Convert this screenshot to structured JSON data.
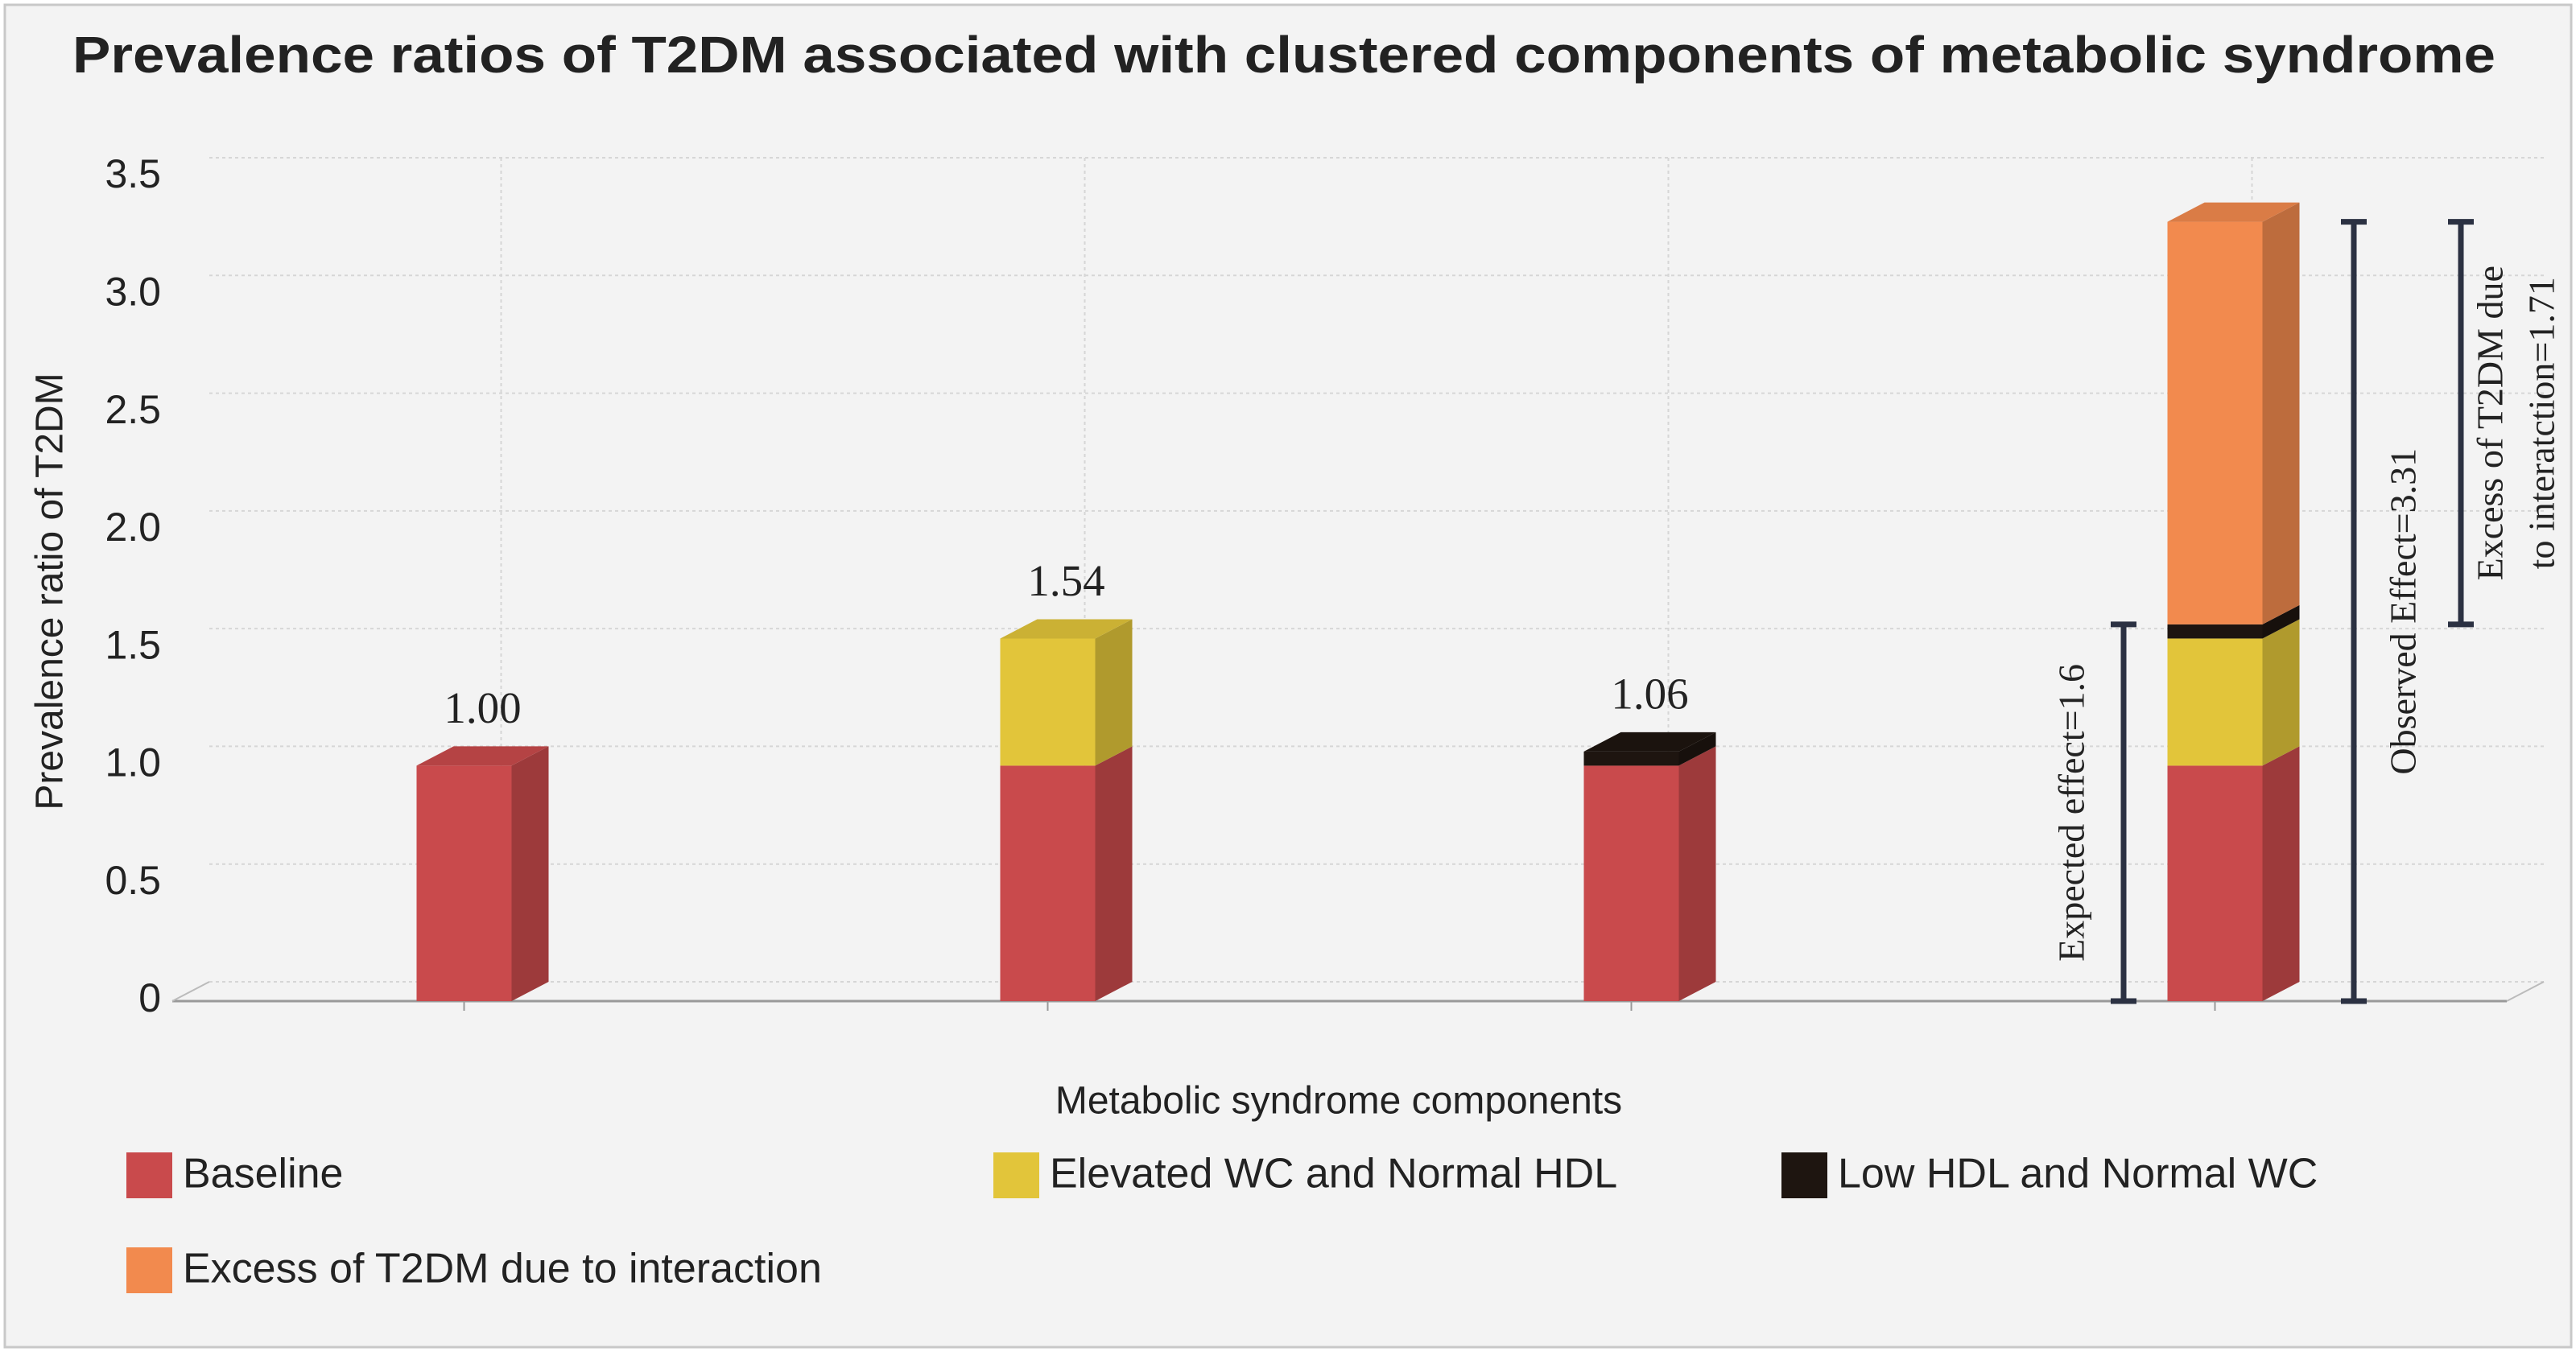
{
  "chart_data": {
    "type": "bar3d-stacked",
    "title": "Prevalence ratios of T2DM associated with clustered components of metabolic syndrome",
    "x_label": "Metabolic syndrome components",
    "y_label": "Prevalence ratio of T2DM",
    "categories": [
      null,
      null,
      null,
      null
    ],
    "series": [
      {
        "name": "Baseline",
        "color": "#c94a4c",
        "values": [
          1,
          1,
          1,
          1
        ]
      },
      {
        "name": "Elevated WC and Normal HDL",
        "color": "#e2c53a",
        "values": [
          0,
          0.54,
          0,
          0.54
        ]
      },
      {
        "name": "Low HDL and Normal WC",
        "color": "#1e1510",
        "values": [
          0,
          0,
          0.06,
          0.06
        ]
      },
      {
        "name": "Excess of T2DM due to interaction",
        "color": "#f28a4e",
        "values": [
          0,
          0,
          0,
          1.71
        ]
      }
    ],
    "total_labels": [
      {
        "value": 1,
        "label": "1.00"
      },
      1.54,
      1.06,
      null
    ],
    "annotations": [
      {
        "text": [
          "Expected effect=1.6"
        ],
        "from": 0,
        "to": 1.6
      },
      {
        "text": [
          "Observed Effect=3.31"
        ],
        "from": 0,
        "to": 3.31
      },
      {
        "text": [
          "Excess of T2DM due",
          "to interatction=1.71"
        ],
        "from": 1.6,
        "to": 3.31
      }
    ],
    "ylim": [
      0,
      3.5
    ],
    "yticks": [
      0,
      0.5,
      {
        "value": 1,
        "label": "1.0"
      },
      1.5,
      {
        "value": 2,
        "label": "2.0"
      },
      2.5,
      {
        "value": 3,
        "label": "3.0"
      },
      3.5
    ],
    "grid": true
  }
}
